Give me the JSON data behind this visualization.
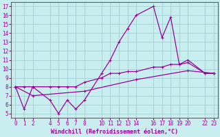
{
  "xlabel": "Windchill (Refroidissement éolien,°C)",
  "bg_color": "#c8eef0",
  "grid_color": "#a8d4d8",
  "line_color": "#990099",
  "x_ticks": [
    0,
    1,
    2,
    4,
    5,
    6,
    7,
    8,
    10,
    11,
    12,
    13,
    14,
    16,
    17,
    18,
    19,
    20,
    22,
    23
  ],
  "y_ticks": [
    5,
    6,
    7,
    8,
    9,
    10,
    11,
    12,
    13,
    14,
    15,
    16,
    17
  ],
  "ylim": [
    4.5,
    17.5
  ],
  "xlim": [
    -0.5,
    23.5
  ],
  "line1_x": [
    0,
    1,
    2,
    4,
    5,
    6,
    7,
    8,
    10,
    11,
    12,
    13,
    14,
    16,
    17,
    18,
    19,
    20,
    22,
    23
  ],
  "line1_y": [
    8.0,
    5.5,
    8.0,
    6.5,
    5.0,
    6.5,
    5.5,
    6.5,
    9.5,
    11.0,
    13.0,
    14.5,
    16.0,
    17.0,
    13.5,
    15.8,
    10.5,
    11.0,
    9.5,
    9.5
  ],
  "line2_x": [
    0,
    1,
    2,
    4,
    5,
    6,
    7,
    8,
    10,
    11,
    12,
    13,
    14,
    16,
    17,
    18,
    19,
    20,
    22,
    23
  ],
  "line2_y": [
    8.0,
    8.0,
    8.0,
    8.0,
    8.0,
    8.0,
    8.0,
    8.5,
    9.0,
    9.5,
    9.5,
    9.7,
    9.7,
    10.2,
    10.2,
    10.5,
    10.5,
    10.7,
    9.5,
    9.5
  ],
  "line3_x": [
    0,
    2,
    8,
    14,
    20,
    23
  ],
  "line3_y": [
    8.0,
    7.0,
    7.5,
    8.8,
    9.8,
    9.5
  ],
  "marker": "+",
  "linewidth": 0.9,
  "markersize": 3,
  "xlabel_fontsize": 6,
  "tick_fontsize": 5.5
}
